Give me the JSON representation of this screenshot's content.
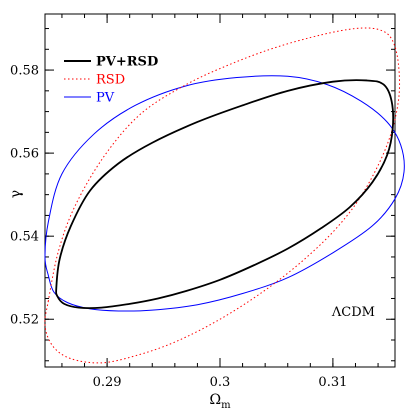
{
  "chart_data": {
    "type": "contour",
    "xlabel_main": "Ω",
    "xlabel_sub": "m",
    "ylabel": "γ",
    "xlim": [
      0.2845,
      0.3155
    ],
    "ylim": [
      0.5085,
      0.5935
    ],
    "xticks": [
      0.29,
      0.3,
      0.31
    ],
    "xtick_labels": [
      "0.29",
      "0.3",
      "0.31"
    ],
    "xminor_step": 0.002,
    "yticks": [
      0.52,
      0.54,
      0.56,
      0.58
    ],
    "ytick_labels": [
      "0.52",
      "0.54",
      "0.56",
      "0.58"
    ],
    "yminor_step": 0.005,
    "annotation": "ΛCDM",
    "legend_position": "top-left",
    "series": [
      {
        "name": "PV+RSD",
        "color": "#000000",
        "style": "solid",
        "weight": "bold",
        "points": [
          [
            0.2855,
            0.5275
          ],
          [
            0.2856,
            0.5255
          ],
          [
            0.2862,
            0.5237
          ],
          [
            0.2875,
            0.5228
          ],
          [
            0.2895,
            0.5228
          ],
          [
            0.292,
            0.5237
          ],
          [
            0.2945,
            0.525
          ],
          [
            0.297,
            0.5268
          ],
          [
            0.3,
            0.5295
          ],
          [
            0.303,
            0.533
          ],
          [
            0.306,
            0.537
          ],
          [
            0.309,
            0.542
          ],
          [
            0.3115,
            0.547
          ],
          [
            0.3135,
            0.553
          ],
          [
            0.3148,
            0.5595
          ],
          [
            0.3153,
            0.566
          ],
          [
            0.3152,
            0.5725
          ],
          [
            0.3145,
            0.5765
          ],
          [
            0.313,
            0.5775
          ],
          [
            0.31,
            0.5772
          ],
          [
            0.306,
            0.575
          ],
          [
            0.302,
            0.5715
          ],
          [
            0.298,
            0.5675
          ],
          [
            0.294,
            0.5625
          ],
          [
            0.291,
            0.5575
          ],
          [
            0.2885,
            0.551
          ],
          [
            0.2868,
            0.5425
          ],
          [
            0.2858,
            0.5345
          ],
          [
            0.2855,
            0.5275
          ]
        ]
      },
      {
        "name": "RSD",
        "color": "#ff0000",
        "style": "dotted",
        "weight": "normal",
        "points": [
          [
            0.2848,
            0.5245
          ],
          [
            0.2845,
            0.5185
          ],
          [
            0.2852,
            0.5135
          ],
          [
            0.2868,
            0.5105
          ],
          [
            0.2895,
            0.5095
          ],
          [
            0.2925,
            0.5112
          ],
          [
            0.296,
            0.5145
          ],
          [
            0.3,
            0.52
          ],
          [
            0.304,
            0.527
          ],
          [
            0.3075,
            0.5345
          ],
          [
            0.3105,
            0.5425
          ],
          [
            0.3128,
            0.551
          ],
          [
            0.3148,
            0.562
          ],
          [
            0.3158,
            0.5725
          ],
          [
            0.3158,
            0.5815
          ],
          [
            0.3152,
            0.5875
          ],
          [
            0.314,
            0.5898
          ],
          [
            0.312,
            0.59
          ],
          [
            0.309,
            0.5885
          ],
          [
            0.305,
            0.5855
          ],
          [
            0.301,
            0.5815
          ],
          [
            0.297,
            0.5765
          ],
          [
            0.293,
            0.5695
          ],
          [
            0.2898,
            0.5595
          ],
          [
            0.2872,
            0.5475
          ],
          [
            0.2857,
            0.5365
          ],
          [
            0.2848,
            0.5245
          ]
        ]
      },
      {
        "name": "PV",
        "color": "#0000ff",
        "style": "solid",
        "weight": "normal",
        "points": [
          [
            0.2848,
            0.5305
          ],
          [
            0.2853,
            0.5265
          ],
          [
            0.2865,
            0.524
          ],
          [
            0.2885,
            0.5225
          ],
          [
            0.291,
            0.522
          ],
          [
            0.294,
            0.5222
          ],
          [
            0.298,
            0.5235
          ],
          [
            0.302,
            0.5262
          ],
          [
            0.306,
            0.53
          ],
          [
            0.31,
            0.536
          ],
          [
            0.3135,
            0.5425
          ],
          [
            0.3155,
            0.549
          ],
          [
            0.3163,
            0.5555
          ],
          [
            0.316,
            0.562
          ],
          [
            0.3148,
            0.5675
          ],
          [
            0.3125,
            0.5725
          ],
          [
            0.3095,
            0.5765
          ],
          [
            0.306,
            0.5785
          ],
          [
            0.3015,
            0.5782
          ],
          [
            0.297,
            0.5762
          ],
          [
            0.2925,
            0.5715
          ],
          [
            0.2888,
            0.5645
          ],
          [
            0.286,
            0.555
          ],
          [
            0.2848,
            0.5435
          ],
          [
            0.2845,
            0.535
          ],
          [
            0.2848,
            0.5305
          ]
        ]
      }
    ]
  }
}
